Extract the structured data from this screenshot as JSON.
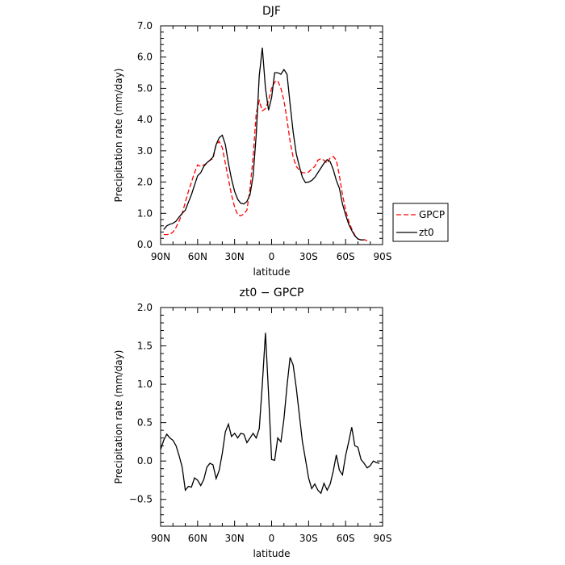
{
  "chart_data": [
    {
      "type": "line",
      "title": "DJF",
      "xlabel": "latitude",
      "ylabel": "Precipitation rate (mm/day)",
      "xlim": [
        90,
        -90
      ],
      "ylim": [
        0,
        7
      ],
      "x_ticks": [
        90,
        60,
        30,
        0,
        -30,
        -60,
        -90
      ],
      "x_tick_labels": [
        "90N",
        "60N",
        "30N",
        "0",
        "30S",
        "60S",
        "90S"
      ],
      "y_ticks": [
        0,
        1,
        2,
        3,
        4,
        5,
        6,
        7
      ],
      "y_tick_labels": [
        "0.0",
        "1.0",
        "2.0",
        "3.0",
        "4.0",
        "5.0",
        "6.0",
        "7.0"
      ],
      "grid": false,
      "legend": {
        "placement": "right",
        "entries": [
          "GPCP",
          "zt0"
        ]
      },
      "series": [
        {
          "name": "GPCP",
          "color": "#ff0000",
          "style": "dashed",
          "points": [
            [
              87.5,
              0.32
            ],
            [
              85,
              0.32
            ],
            [
              82.5,
              0.33
            ],
            [
              80,
              0.4
            ],
            [
              77.5,
              0.55
            ],
            [
              75,
              0.75
            ],
            [
              72.5,
              1.0
            ],
            [
              70,
              1.35
            ],
            [
              67.5,
              1.7
            ],
            [
              65,
              2.0
            ],
            [
              62.5,
              2.3
            ],
            [
              60,
              2.55
            ],
            [
              57.5,
              2.5
            ],
            [
              55,
              2.55
            ],
            [
              52.5,
              2.6
            ],
            [
              50,
              2.7
            ],
            [
              47.5,
              2.75
            ],
            [
              45,
              3.2
            ],
            [
              42.5,
              3.3
            ],
            [
              40,
              3.1
            ],
            [
              37.5,
              2.6
            ],
            [
              35,
              2.1
            ],
            [
              32.5,
              1.6
            ],
            [
              30,
              1.2
            ],
            [
              27.5,
              0.95
            ],
            [
              25,
              0.92
            ],
            [
              22.5,
              0.98
            ],
            [
              20,
              1.1
            ],
            [
              17.5,
              1.8
            ],
            [
              15,
              2.8
            ],
            [
              12.5,
              4.2
            ],
            [
              10,
              4.6
            ],
            [
              7.5,
              4.28
            ],
            [
              5,
              4.35
            ],
            [
              2.5,
              4.6
            ],
            [
              0,
              5.0
            ],
            [
              -2.5,
              5.2
            ],
            [
              -5,
              5.25
            ],
            [
              -7.5,
              5.0
            ],
            [
              -10,
              4.6
            ],
            [
              -12.5,
              4.0
            ],
            [
              -15,
              3.3
            ],
            [
              -17.5,
              2.8
            ],
            [
              -20,
              2.5
            ],
            [
              -22.5,
              2.38
            ],
            [
              -25,
              2.3
            ],
            [
              -27.5,
              2.3
            ],
            [
              -30,
              2.32
            ],
            [
              -32.5,
              2.42
            ],
            [
              -35,
              2.5
            ],
            [
              -37.5,
              2.7
            ],
            [
              -40,
              2.75
            ],
            [
              -42.5,
              2.7
            ],
            [
              -45,
              2.6
            ],
            [
              -47.5,
              2.78
            ],
            [
              -50,
              2.82
            ],
            [
              -52.5,
              2.7
            ],
            [
              -55,
              2.2
            ],
            [
              -57.5,
              1.6
            ],
            [
              -60,
              1.1
            ],
            [
              -62.5,
              0.75
            ],
            [
              -65,
              0.5
            ],
            [
              -67.5,
              0.3
            ],
            [
              -70,
              0.18
            ],
            [
              -72.5,
              0.15
            ],
            [
              -75,
              0.16
            ],
            [
              -77.5,
              0.12
            ]
          ]
        },
        {
          "name": "zt0",
          "color": "#000000",
          "style": "solid",
          "points": [
            [
              87.5,
              0.48
            ],
            [
              85,
              0.6
            ],
            [
              82.5,
              0.65
            ],
            [
              80,
              0.68
            ],
            [
              77.5,
              0.75
            ],
            [
              75,
              0.88
            ],
            [
              72.5,
              1.0
            ],
            [
              70,
              1.1
            ],
            [
              67.5,
              1.35
            ],
            [
              65,
              1.6
            ],
            [
              62.5,
              1.9
            ],
            [
              60,
              2.2
            ],
            [
              57.5,
              2.3
            ],
            [
              55,
              2.5
            ],
            [
              52.5,
              2.62
            ],
            [
              50,
              2.7
            ],
            [
              47.5,
              2.8
            ],
            [
              45,
              3.2
            ],
            [
              42.5,
              3.42
            ],
            [
              40,
              3.5
            ],
            [
              37.5,
              3.2
            ],
            [
              35,
              2.6
            ],
            [
              32.5,
              2.1
            ],
            [
              30,
              1.7
            ],
            [
              27.5,
              1.45
            ],
            [
              25,
              1.32
            ],
            [
              22.5,
              1.3
            ],
            [
              20,
              1.38
            ],
            [
              17.5,
              1.6
            ],
            [
              15,
              2.2
            ],
            [
              12.5,
              3.5
            ],
            [
              10,
              5.4
            ],
            [
              7.5,
              6.3
            ],
            [
              5,
              5.0
            ],
            [
              2.5,
              4.3
            ],
            [
              0,
              4.7
            ],
            [
              -2.5,
              5.5
            ],
            [
              -5,
              5.5
            ],
            [
              -7.5,
              5.45
            ],
            [
              -10,
              5.6
            ],
            [
              -12.5,
              5.45
            ],
            [
              -15,
              4.5
            ],
            [
              -17.5,
              3.6
            ],
            [
              -20,
              2.9
            ],
            [
              -22.5,
              2.5
            ],
            [
              -25,
              2.15
            ],
            [
              -27.5,
              1.98
            ],
            [
              -30,
              2.0
            ],
            [
              -32.5,
              2.05
            ],
            [
              -35,
              2.15
            ],
            [
              -37.5,
              2.3
            ],
            [
              -40,
              2.45
            ],
            [
              -42.5,
              2.6
            ],
            [
              -45,
              2.72
            ],
            [
              -47.5,
              2.65
            ],
            [
              -50,
              2.4
            ],
            [
              -52.5,
              2.05
            ],
            [
              -55,
              1.8
            ],
            [
              -57.5,
              1.3
            ],
            [
              -60,
              0.95
            ],
            [
              -62.5,
              0.65
            ],
            [
              -65,
              0.45
            ],
            [
              -67.5,
              0.28
            ],
            [
              -70,
              0.18
            ],
            [
              -72.5,
              0.15
            ],
            [
              -75,
              0.15
            ]
          ]
        }
      ]
    },
    {
      "type": "line",
      "title": "zt0 − GPCP",
      "xlabel": "latitude",
      "ylabel": "Precipitation rate (mm/day)",
      "xlim": [
        90,
        -90
      ],
      "ylim": [
        -0.85,
        2.0
      ],
      "x_ticks": [
        90,
        60,
        30,
        0,
        -30,
        -60,
        -90
      ],
      "x_tick_labels": [
        "90N",
        "60N",
        "30N",
        "0",
        "30S",
        "60S",
        "90S"
      ],
      "y_ticks": [
        -0.5,
        0,
        0.5,
        1.0,
        1.5,
        2.0
      ],
      "y_tick_labels": [
        "−0.5",
        "0.0",
        "0.5",
        "1.0",
        "1.5",
        "2.0"
      ],
      "grid": false,
      "series": [
        {
          "color": "#000000",
          "style": "solid",
          "points": [
            [
              90,
              0.15
            ],
            [
              87.5,
              0.27
            ],
            [
              85,
              0.35
            ],
            [
              82.5,
              0.3
            ],
            [
              80,
              0.27
            ],
            [
              77.5,
              0.2
            ],
            [
              75,
              0.07
            ],
            [
              72.5,
              -0.08
            ],
            [
              70,
              -0.38
            ],
            [
              67.5,
              -0.33
            ],
            [
              65,
              -0.34
            ],
            [
              62.5,
              -0.22
            ],
            [
              60,
              -0.25
            ],
            [
              57.5,
              -0.32
            ],
            [
              55,
              -0.24
            ],
            [
              52.5,
              -0.08
            ],
            [
              50,
              -0.03
            ],
            [
              47.5,
              -0.05
            ],
            [
              45,
              -0.23
            ],
            [
              42.5,
              -0.12
            ],
            [
              40,
              0.1
            ],
            [
              37.5,
              0.38
            ],
            [
              35,
              0.48
            ],
            [
              32.5,
              0.32
            ],
            [
              30,
              0.36
            ],
            [
              27.5,
              0.3
            ],
            [
              25,
              0.36
            ],
            [
              22.5,
              0.35
            ],
            [
              20,
              0.24
            ],
            [
              17.5,
              0.3
            ],
            [
              15,
              0.36
            ],
            [
              12.5,
              0.3
            ],
            [
              10,
              0.42
            ],
            [
              7.5,
              1.0
            ],
            [
              5,
              1.67
            ],
            [
              2.5,
              0.88
            ],
            [
              0,
              0.02
            ],
            [
              -2.5,
              0.01
            ],
            [
              -5,
              0.3
            ],
            [
              -7.5,
              0.25
            ],
            [
              -10,
              0.55
            ],
            [
              -12.5,
              0.98
            ],
            [
              -15,
              1.35
            ],
            [
              -17.5,
              1.25
            ],
            [
              -20,
              0.95
            ],
            [
              -22.5,
              0.6
            ],
            [
              -25,
              0.25
            ],
            [
              -27.5,
              0.02
            ],
            [
              -30,
              -0.22
            ],
            [
              -32.5,
              -0.36
            ],
            [
              -35,
              -0.3
            ],
            [
              -37.5,
              -0.38
            ],
            [
              -40,
              -0.42
            ],
            [
              -42.5,
              -0.29
            ],
            [
              -45,
              -0.38
            ],
            [
              -47.5,
              -0.3
            ],
            [
              -50,
              -0.13
            ],
            [
              -52.5,
              0.08
            ],
            [
              -55,
              -0.12
            ],
            [
              -57.5,
              -0.18
            ],
            [
              -60,
              0.07
            ],
            [
              -62.5,
              0.25
            ],
            [
              -65,
              0.44
            ],
            [
              -67.5,
              0.2
            ],
            [
              -70,
              0.18
            ],
            [
              -72.5,
              0.02
            ],
            [
              -75,
              -0.03
            ],
            [
              -77.5,
              -0.09
            ],
            [
              -80,
              -0.06
            ],
            [
              -82.5,
              0.0
            ],
            [
              -85,
              -0.02
            ],
            [
              -87.5,
              -0.03
            ]
          ]
        }
      ]
    }
  ]
}
